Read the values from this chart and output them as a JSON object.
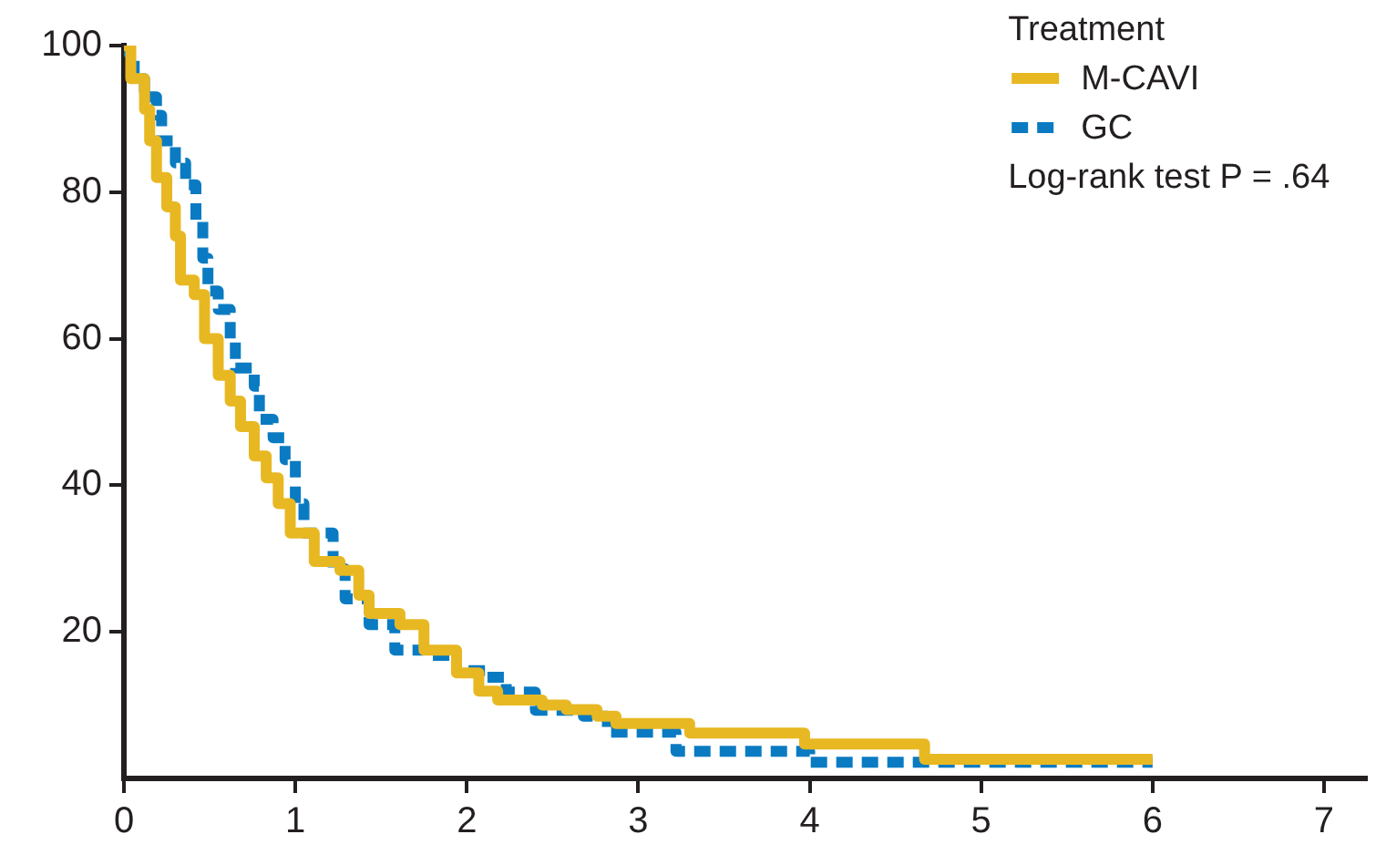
{
  "chart_data": {
    "type": "step",
    "legend": "top right",
    "legend_title": "Treatment",
    "annotations": [
      "Log-rank test P = .64"
    ],
    "xlim": [
      0,
      7.25
    ],
    "xticks": [
      0,
      1,
      2,
      3,
      4,
      5,
      6,
      7
    ],
    "ylim": [
      0,
      100
    ],
    "yticks": [
      20,
      40,
      60,
      80,
      100
    ],
    "grid": false,
    "series": [
      {
        "name": "M-CAVI",
        "color": "#e8b822",
        "line_style": "solid",
        "x": [
          0,
          0.04,
          0.12,
          0.15,
          0.19,
          0.25,
          0.3,
          0.33,
          0.41,
          0.47,
          0.55,
          0.62,
          0.68,
          0.76,
          0.83,
          0.9,
          0.97,
          1.11,
          1.26,
          1.37,
          1.43,
          1.61,
          1.75,
          1.94,
          2.07,
          2.18,
          2.44,
          2.58,
          2.76,
          2.87,
          3.3,
          3.97,
          4.67,
          6.0
        ],
        "values": [
          100,
          95.5,
          91.3,
          87,
          82,
          78,
          74,
          68,
          66,
          60,
          55,
          51.5,
          48,
          44,
          41,
          37.5,
          33.5,
          29.6,
          28.4,
          25,
          22.5,
          21,
          17.5,
          14.4,
          11.9,
          10.7,
          10,
          9.4,
          8.5,
          7.5,
          6.2,
          4.7,
          2.6,
          2.6
        ]
      },
      {
        "name": "GC",
        "color": "#0a7bc2",
        "line_style": "dashed",
        "x": [
          0,
          0.03,
          0.06,
          0.12,
          0.19,
          0.22,
          0.3,
          0.36,
          0.42,
          0.46,
          0.49,
          0.55,
          0.62,
          0.65,
          0.76,
          0.79,
          0.87,
          0.94,
          1.0,
          1.05,
          1.22,
          1.29,
          1.43,
          1.58,
          1.75,
          1.94,
          2.12,
          2.23,
          2.4,
          2.68,
          2.82,
          3.22,
          4.0,
          6.0
        ],
        "values": [
          100,
          98,
          95.5,
          93,
          90.5,
          87,
          84,
          81,
          76,
          71,
          66.5,
          64,
          60,
          56,
          53.5,
          49,
          46.5,
          43.5,
          37.5,
          33.5,
          28.6,
          24.5,
          21,
          17.5,
          16.8,
          14.7,
          13.8,
          11.8,
          9.3,
          8.5,
          6.3,
          3.7,
          2.2,
          2.2
        ]
      }
    ]
  }
}
